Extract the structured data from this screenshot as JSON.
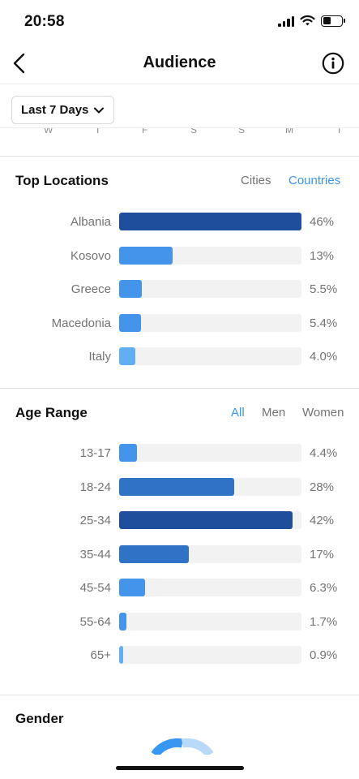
{
  "status": {
    "time": "20:58"
  },
  "nav": {
    "title": "Audience"
  },
  "filter": {
    "label": "Last 7 Days"
  },
  "day_axis": [
    "W",
    "T",
    "F",
    "S",
    "S",
    "M",
    "T"
  ],
  "locations": {
    "title": "Top Locations",
    "tabs": [
      {
        "label": "Cities",
        "active": false
      },
      {
        "label": "Countries",
        "active": true
      }
    ],
    "rows": [
      {
        "label": "Albania",
        "value_text": "46%",
        "fraction": 0.46,
        "color": "#1f4e9c"
      },
      {
        "label": "Kosovo",
        "value_text": "13%",
        "fraction": 0.13,
        "color": "#4394ea"
      },
      {
        "label": "Greece",
        "value_text": "5.5%",
        "fraction": 0.055,
        "color": "#4394ea"
      },
      {
        "label": "Macedonia",
        "value_text": "5.4%",
        "fraction": 0.054,
        "color": "#4394ea"
      },
      {
        "label": "Italy",
        "value_text": "4.0%",
        "fraction": 0.04,
        "color": "#62aef2"
      }
    ]
  },
  "age": {
    "title": "Age Range",
    "tabs": [
      {
        "label": "All",
        "active": true
      },
      {
        "label": "Men",
        "active": false
      },
      {
        "label": "Women",
        "active": false
      }
    ],
    "rows": [
      {
        "label": "13-17",
        "value_text": "4.4%",
        "fraction": 0.044,
        "color": "#4394ea"
      },
      {
        "label": "18-24",
        "value_text": "28%",
        "fraction": 0.28,
        "color": "#2f72c6"
      },
      {
        "label": "25-34",
        "value_text": "42%",
        "fraction": 0.42,
        "color": "#1f4e9c"
      },
      {
        "label": "35-44",
        "value_text": "17%",
        "fraction": 0.17,
        "color": "#2f72c6"
      },
      {
        "label": "45-54",
        "value_text": "6.3%",
        "fraction": 0.063,
        "color": "#4394ea"
      },
      {
        "label": "55-64",
        "value_text": "1.7%",
        "fraction": 0.017,
        "color": "#4394ea"
      },
      {
        "label": "65+",
        "value_text": "0.9%",
        "fraction": 0.009,
        "color": "#62aef2"
      }
    ]
  },
  "gender": {
    "title": "Gender"
  },
  "colors": {
    "accent": "#3897f0",
    "muted": "#737373",
    "track": "#f2f2f2"
  },
  "icons": [
    "signal-icon",
    "wifi-icon",
    "battery-icon",
    "back-arrow-icon",
    "info-icon",
    "chevron-down-icon"
  ]
}
